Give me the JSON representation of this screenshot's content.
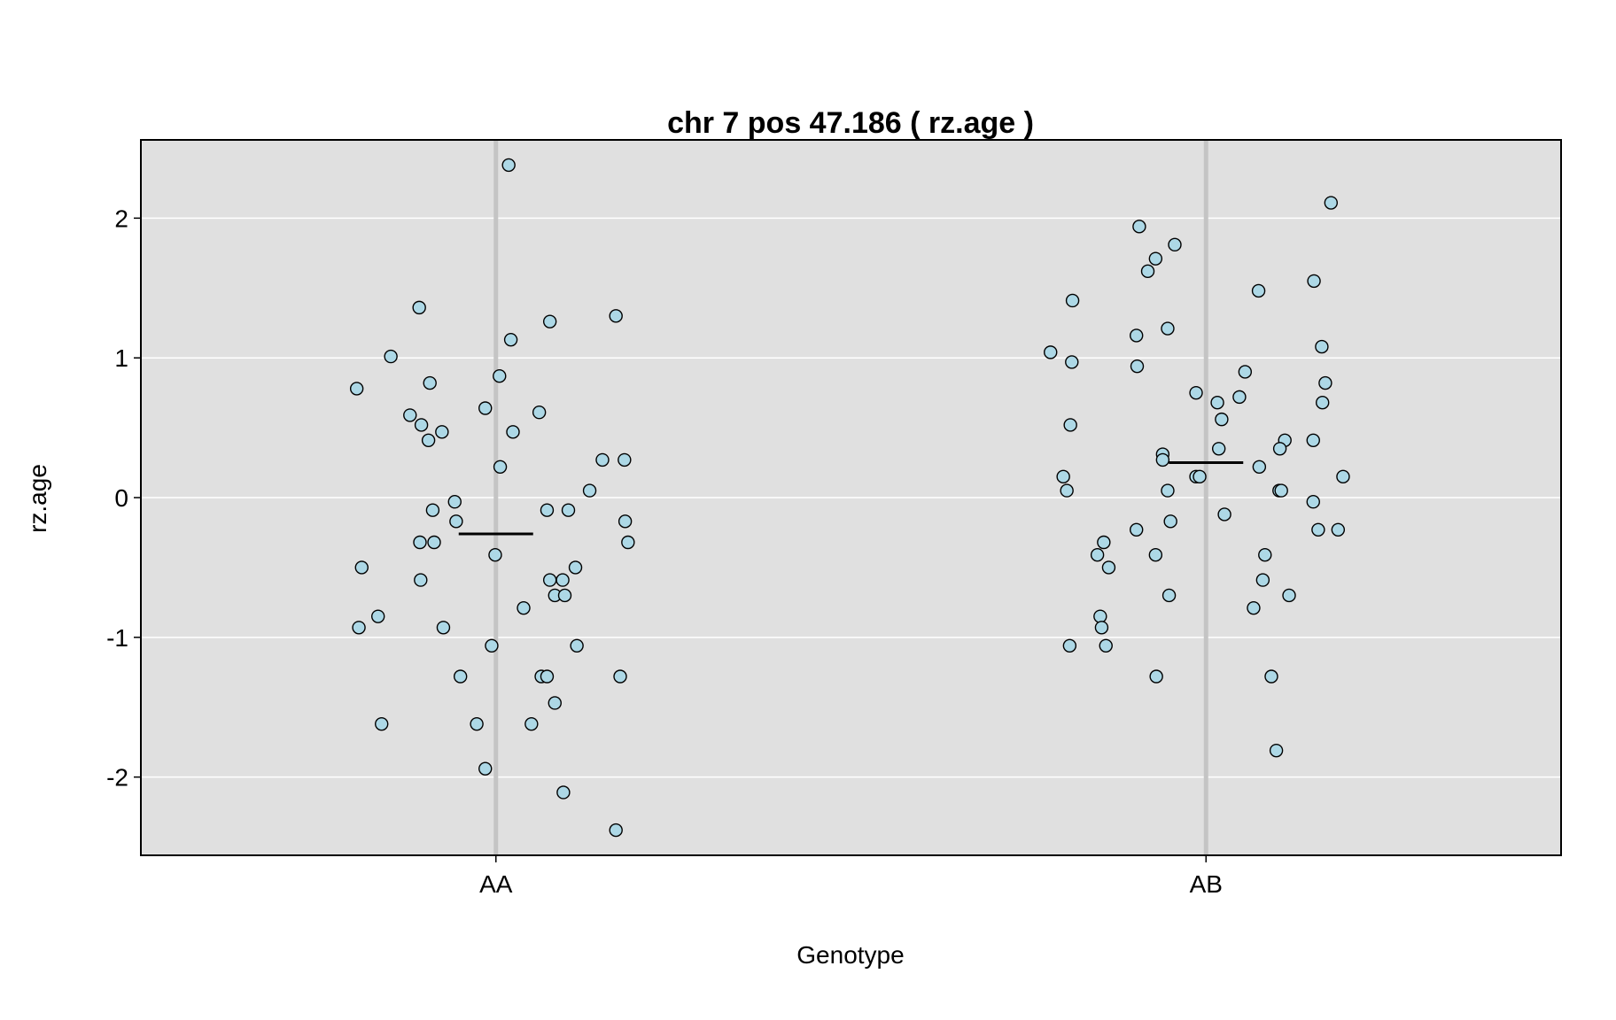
{
  "chart_data": {
    "type": "scatter",
    "title": "chr 7 pos 47.186 ( rz.age )",
    "xlabel": "Genotype",
    "ylabel": "rz.age",
    "categories": [
      "AA",
      "AB"
    ],
    "ylim": [
      -2.56,
      2.56
    ],
    "yticks": [
      -2,
      -1,
      0,
      1,
      2
    ],
    "ytick_labels": [
      "-2",
      "-1",
      "0",
      "1",
      "2"
    ],
    "grid": true,
    "background_color": "#e0e0e0",
    "grid_color": "#ffffff",
    "category_line_color": "#c4c4c4",
    "point_fill": "#add8e6",
    "point_stroke": "#000000",
    "series": [
      {
        "category": "AA",
        "mean": -0.26,
        "points": [
          {
            "x": 1.018,
            "y": 2.38
          },
          {
            "x": 0.892,
            "y": 1.36
          },
          {
            "x": 1.076,
            "y": 1.26
          },
          {
            "x": 1.169,
            "y": 1.3
          },
          {
            "x": 1.021,
            "y": 1.13
          },
          {
            "x": 0.852,
            "y": 1.01
          },
          {
            "x": 0.804,
            "y": 0.78
          },
          {
            "x": 1.005,
            "y": 0.87
          },
          {
            "x": 0.907,
            "y": 0.82
          },
          {
            "x": 0.879,
            "y": 0.59
          },
          {
            "x": 0.985,
            "y": 0.64
          },
          {
            "x": 1.061,
            "y": 0.61
          },
          {
            "x": 0.895,
            "y": 0.52
          },
          {
            "x": 0.905,
            "y": 0.41
          },
          {
            "x": 0.924,
            "y": 0.47
          },
          {
            "x": 1.024,
            "y": 0.47
          },
          {
            "x": 1.006,
            "y": 0.22
          },
          {
            "x": 1.15,
            "y": 0.27
          },
          {
            "x": 1.181,
            "y": 0.27
          },
          {
            "x": 1.132,
            "y": 0.05
          },
          {
            "x": 0.942,
            "y": -0.03
          },
          {
            "x": 0.911,
            "y": -0.09
          },
          {
            "x": 1.072,
            "y": -0.09
          },
          {
            "x": 1.102,
            "y": -0.09
          },
          {
            "x": 0.944,
            "y": -0.17
          },
          {
            "x": 1.182,
            "y": -0.17
          },
          {
            "x": 0.893,
            "y": -0.32
          },
          {
            "x": 0.913,
            "y": -0.32
          },
          {
            "x": 1.186,
            "y": -0.32
          },
          {
            "x": 0.999,
            "y": -0.41
          },
          {
            "x": 0.811,
            "y": -0.5
          },
          {
            "x": 1.112,
            "y": -0.5
          },
          {
            "x": 0.894,
            "y": -0.59
          },
          {
            "x": 1.076,
            "y": -0.59
          },
          {
            "x": 1.094,
            "y": -0.59
          },
          {
            "x": 1.083,
            "y": -0.7
          },
          {
            "x": 1.097,
            "y": -0.7
          },
          {
            "x": 1.039,
            "y": -0.79
          },
          {
            "x": 0.834,
            "y": -0.85
          },
          {
            "x": 0.807,
            "y": -0.93
          },
          {
            "x": 0.926,
            "y": -0.93
          },
          {
            "x": 0.994,
            "y": -1.06
          },
          {
            "x": 1.114,
            "y": -1.06
          },
          {
            "x": 0.95,
            "y": -1.28
          },
          {
            "x": 1.064,
            "y": -1.28
          },
          {
            "x": 1.072,
            "y": -1.28
          },
          {
            "x": 1.175,
            "y": -1.28
          },
          {
            "x": 1.083,
            "y": -1.47
          },
          {
            "x": 0.839,
            "y": -1.62
          },
          {
            "x": 0.973,
            "y": -1.62
          },
          {
            "x": 1.05,
            "y": -1.62
          },
          {
            "x": 0.985,
            "y": -1.94
          },
          {
            "x": 1.095,
            "y": -2.11
          },
          {
            "x": 1.169,
            "y": -2.38
          }
        ]
      },
      {
        "category": "AB",
        "mean": 0.25,
        "points": [
          {
            "x": 2.176,
            "y": 2.11
          },
          {
            "x": 1.906,
            "y": 1.94
          },
          {
            "x": 1.956,
            "y": 1.81
          },
          {
            "x": 1.929,
            "y": 1.71
          },
          {
            "x": 1.918,
            "y": 1.62
          },
          {
            "x": 2.152,
            "y": 1.55
          },
          {
            "x": 2.074,
            "y": 1.48
          },
          {
            "x": 1.812,
            "y": 1.41
          },
          {
            "x": 1.946,
            "y": 1.21
          },
          {
            "x": 1.902,
            "y": 1.16
          },
          {
            "x": 2.163,
            "y": 1.08
          },
          {
            "x": 1.781,
            "y": 1.04
          },
          {
            "x": 1.811,
            "y": 0.97
          },
          {
            "x": 1.903,
            "y": 0.94
          },
          {
            "x": 2.055,
            "y": 0.9
          },
          {
            "x": 2.168,
            "y": 0.82
          },
          {
            "x": 1.986,
            "y": 0.75
          },
          {
            "x": 2.047,
            "y": 0.72
          },
          {
            "x": 2.016,
            "y": 0.68
          },
          {
            "x": 2.164,
            "y": 0.68
          },
          {
            "x": 2.022,
            "y": 0.56
          },
          {
            "x": 1.809,
            "y": 0.52
          },
          {
            "x": 2.111,
            "y": 0.41
          },
          {
            "x": 2.151,
            "y": 0.41
          },
          {
            "x": 2.104,
            "y": 0.35
          },
          {
            "x": 2.018,
            "y": 0.35
          },
          {
            "x": 1.939,
            "y": 0.31
          },
          {
            "x": 1.939,
            "y": 0.27
          },
          {
            "x": 2.075,
            "y": 0.22
          },
          {
            "x": 1.799,
            "y": 0.15
          },
          {
            "x": 1.986,
            "y": 0.15
          },
          {
            "x": 1.991,
            "y": 0.15
          },
          {
            "x": 2.193,
            "y": 0.15
          },
          {
            "x": 1.804,
            "y": 0.05
          },
          {
            "x": 1.946,
            "y": 0.05
          },
          {
            "x": 2.103,
            "y": 0.05
          },
          {
            "x": 2.106,
            "y": 0.05
          },
          {
            "x": 2.151,
            "y": -0.03
          },
          {
            "x": 2.026,
            "y": -0.12
          },
          {
            "x": 1.95,
            "y": -0.17
          },
          {
            "x": 1.902,
            "y": -0.23
          },
          {
            "x": 2.158,
            "y": -0.23
          },
          {
            "x": 2.186,
            "y": -0.23
          },
          {
            "x": 1.856,
            "y": -0.32
          },
          {
            "x": 1.847,
            "y": -0.41
          },
          {
            "x": 1.929,
            "y": -0.41
          },
          {
            "x": 2.083,
            "y": -0.41
          },
          {
            "x": 1.863,
            "y": -0.5
          },
          {
            "x": 2.08,
            "y": -0.59
          },
          {
            "x": 1.948,
            "y": -0.7
          },
          {
            "x": 2.117,
            "y": -0.7
          },
          {
            "x": 2.067,
            "y": -0.79
          },
          {
            "x": 1.851,
            "y": -0.85
          },
          {
            "x": 1.853,
            "y": -0.93
          },
          {
            "x": 1.808,
            "y": -1.06
          },
          {
            "x": 1.859,
            "y": -1.06
          },
          {
            "x": 1.93,
            "y": -1.28
          },
          {
            "x": 2.092,
            "y": -1.28
          },
          {
            "x": 2.099,
            "y": -1.81
          }
        ]
      }
    ]
  }
}
